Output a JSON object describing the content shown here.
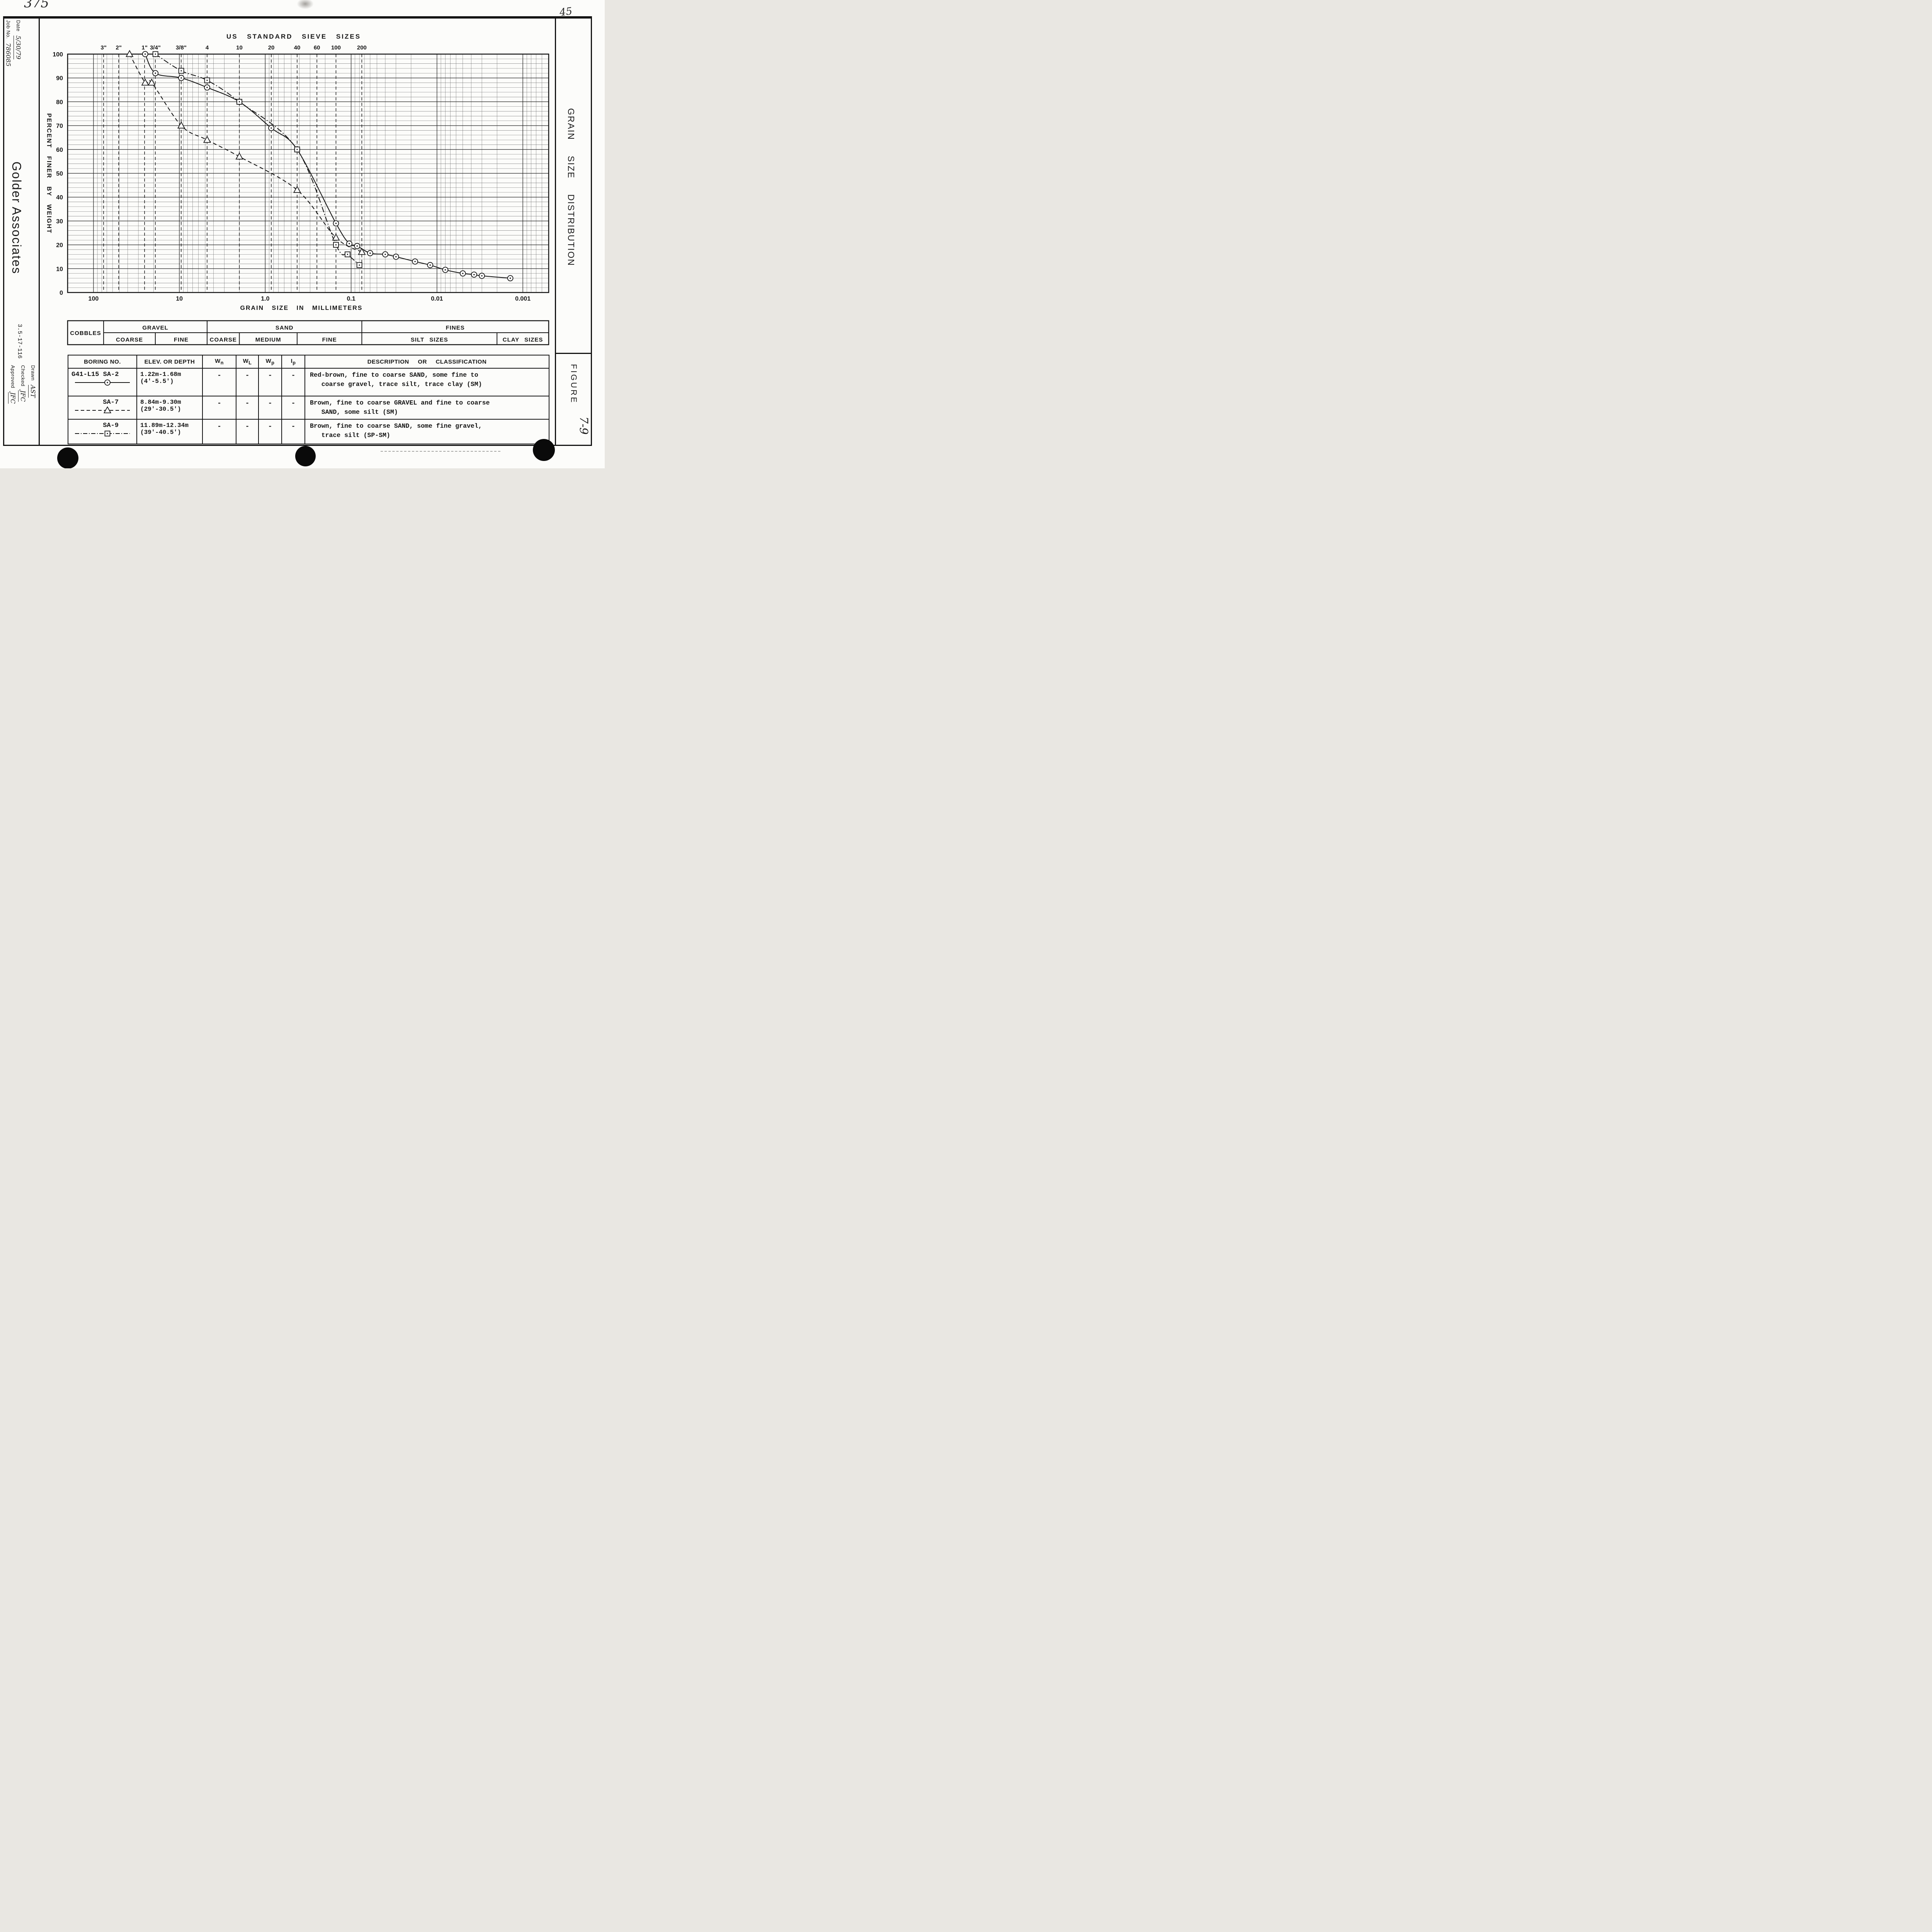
{
  "marginalia": {
    "top_left": "375",
    "top_right": "45"
  },
  "title_block": {
    "date_label": "Date",
    "date_value": "5/30/79",
    "job_no_label": "Job No.",
    "job_no_value": "786085",
    "company": "Golder Associates",
    "project_number": "3.5-17-116",
    "drawn_label": "Drawn",
    "drawn_value": "AST",
    "checked_label": "Checked",
    "checked_value": "JFC",
    "approved_label": "Approved",
    "approved_value": "JFC"
  },
  "right_panel": {
    "title": "GRAIN SIZE DISTRIBUTION",
    "figure_label": "FIGURE",
    "figure_number": "7-9"
  },
  "chart_data": {
    "type": "line",
    "title": "US STANDARD SIEVE SIZES",
    "xlabel": "GRAIN SIZE IN MILLIMETERS",
    "ylabel": "PERCENT FINER BY WEIGHT",
    "x_scale": "log-reversed",
    "x_range_mm": [
      200,
      0.0005
    ],
    "x_tick_values": [
      100,
      10,
      1.0,
      0.1,
      0.01,
      0.001
    ],
    "x_tick_labels": [
      "100",
      "10",
      "1.0",
      "0.1",
      "0.01",
      "0.001"
    ],
    "y_range": [
      0,
      100
    ],
    "y_tick_step": 10,
    "y_tick_labels": [
      "100",
      "90",
      "80",
      "70",
      "60",
      "50",
      "40",
      "30",
      "20",
      "10",
      "0"
    ],
    "grid": "on",
    "sieves": [
      {
        "label": "3\"",
        "mm": 76.2
      },
      {
        "label": "2\"",
        "mm": 50.8
      },
      {
        "label": "1\"",
        "mm": 25.4
      },
      {
        "label": "3/4\"",
        "mm": 19.05
      },
      {
        "label": "3/8\"",
        "mm": 9.525
      },
      {
        "label": "4",
        "mm": 4.75
      },
      {
        "label": "10",
        "mm": 2.0
      },
      {
        "label": "20",
        "mm": 0.85
      },
      {
        "label": "40",
        "mm": 0.425
      },
      {
        "label": "60",
        "mm": 0.25
      },
      {
        "label": "100",
        "mm": 0.15
      },
      {
        "label": "200",
        "mm": 0.075
      }
    ],
    "series": [
      {
        "name": "SA-2",
        "marker": "circle",
        "line": "solid",
        "points": [
          [
            25,
            100
          ],
          [
            19,
            92
          ],
          [
            9.5,
            90
          ],
          [
            4.75,
            86
          ],
          [
            2,
            80
          ],
          [
            0.85,
            69
          ],
          [
            0.425,
            60
          ],
          [
            0.15,
            29
          ],
          [
            0.105,
            20.5
          ],
          [
            0.085,
            19.5
          ],
          [
            0.06,
            16.5
          ],
          [
            0.04,
            16
          ],
          [
            0.03,
            15
          ],
          [
            0.018,
            13
          ],
          [
            0.012,
            11.5
          ],
          [
            0.008,
            9.5
          ],
          [
            0.005,
            8
          ],
          [
            0.0037,
            7.5
          ],
          [
            0.003,
            7
          ],
          [
            0.0014,
            6
          ]
        ]
      },
      {
        "name": "SA-7",
        "marker": "triangle",
        "line": "dashed",
        "points": [
          [
            38,
            100
          ],
          [
            25,
            88
          ],
          [
            21,
            88
          ],
          [
            9.5,
            70
          ],
          [
            4.75,
            64
          ],
          [
            2,
            57
          ],
          [
            0.425,
            43
          ],
          [
            0.15,
            23
          ],
          [
            0.075,
            17
          ]
        ]
      },
      {
        "name": "SA-9",
        "marker": "square",
        "line": "dashdot",
        "points": [
          [
            19,
            100
          ],
          [
            9.5,
            93
          ],
          [
            4.75,
            89
          ],
          [
            2,
            80
          ],
          [
            0.425,
            60
          ],
          [
            0.15,
            20
          ],
          [
            0.11,
            16
          ],
          [
            0.08,
            11.5
          ]
        ]
      }
    ]
  },
  "classification": {
    "row1": [
      {
        "label": "COBBLES",
        "from_mm": 200,
        "to_mm": 76.2,
        "rowspan": 2
      },
      {
        "label": "GRAVEL",
        "from_mm": 76.2,
        "to_mm": 4.75
      },
      {
        "label": "SAND",
        "from_mm": 4.75,
        "to_mm": 0.075
      },
      {
        "label": "FINES",
        "from_mm": 0.075,
        "to_mm": 0.0005
      }
    ],
    "row2": [
      {
        "label": "COARSE",
        "from_mm": 76.2,
        "to_mm": 19.05
      },
      {
        "label": "FINE",
        "from_mm": 19.05,
        "to_mm": 4.75
      },
      {
        "label": "COARSE",
        "from_mm": 4.75,
        "to_mm": 2.0
      },
      {
        "label": "MEDIUM",
        "from_mm": 2.0,
        "to_mm": 0.425
      },
      {
        "label": "FINE",
        "from_mm": 0.425,
        "to_mm": 0.075
      },
      {
        "label": "SILT SIZES",
        "from_mm": 0.075,
        "to_mm": 0.002,
        "wide": true
      },
      {
        "label": "CLAY SIZES",
        "from_mm": 0.002,
        "to_mm": 0.0005,
        "wide": true
      }
    ]
  },
  "table": {
    "headers": [
      {
        "key": "boring",
        "label": "BORING NO."
      },
      {
        "key": "depth",
        "label": "ELEV. OR DEPTH"
      },
      {
        "key": "wn",
        "label": "W",
        "sub": "n"
      },
      {
        "key": "wl",
        "label": "W",
        "sub": "L"
      },
      {
        "key": "wp",
        "label": "W",
        "sub": "p"
      },
      {
        "key": "ip",
        "label": "I",
        "sub": "p"
      },
      {
        "key": "desc",
        "label": "DESCRIPTION OR CLASSIFICATION"
      }
    ],
    "rows": [
      {
        "boring_line1": "G41-L15  SA-2",
        "series_index": 0,
        "depth_line1": "1.22m-1.68m",
        "depth_line2": "(4'-5.5')",
        "wn": "-",
        "wl": "-",
        "wp": "-",
        "ip": "-",
        "description": "Red-brown, fine to coarse SAND, some fine to\n   coarse gravel, trace silt, trace clay (SM)"
      },
      {
        "boring_line1": "SA-7",
        "series_index": 1,
        "depth_line1": "8.84m-9.30m",
        "depth_line2": "(29'-30.5')",
        "wn": "-",
        "wl": "-",
        "wp": "-",
        "ip": "-",
        "description": "Brown, fine to coarse GRAVEL and fine to coarse\n   SAND, some silt (SM)"
      },
      {
        "boring_line1": "SA-9",
        "series_index": 2,
        "depth_line1": "11.89m-12.34m",
        "depth_line2": "(39'-40.5')",
        "wn": "-",
        "wl": "-",
        "wp": "-",
        "ip": "-",
        "description": "Brown, fine to coarse SAND, some fine gravel,\n   trace silt (SP-SM)"
      }
    ]
  }
}
